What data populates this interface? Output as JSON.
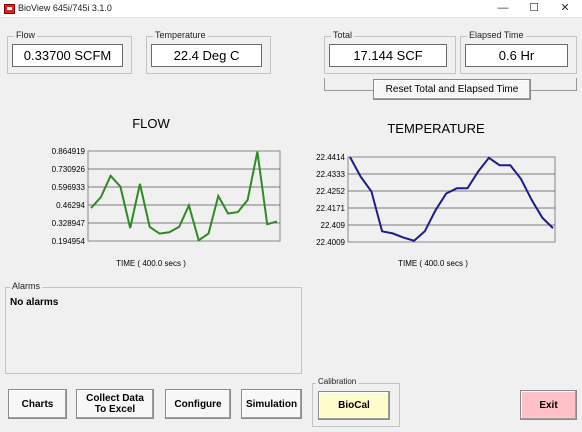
{
  "window": {
    "title": "BioView 645i/745i 3.1.0",
    "controls": {
      "minimize": "—",
      "maximize": "☐",
      "close": "✕"
    }
  },
  "readouts": {
    "flow": {
      "label": "Flow",
      "value": "0.33700 SCFM"
    },
    "temperature": {
      "label": "Temperature",
      "value": "22.4 Deg C"
    },
    "total": {
      "label": "Total",
      "value": "17.144 SCF"
    },
    "elapsed": {
      "label": "Elapsed Time",
      "value": "0.6  Hr"
    }
  },
  "reset_button": "Reset Total and Elapsed Time",
  "alarms": {
    "label": "Alarms",
    "text": "No alarms"
  },
  "buttons": {
    "charts": "Charts",
    "collect_line1": "Collect Data",
    "collect_line2": "To Excel",
    "configure": "Configure",
    "simulation": "Simulation",
    "calibration_label": "Calibration",
    "biocal": "BioCal",
    "exit": "Exit"
  },
  "colors": {
    "flow_line": "#2e8b22",
    "temperature_line": "#1c1c8c",
    "biocal_bg": "#fffccc",
    "exit_bg": "#ffc0c8"
  },
  "chart_data": [
    {
      "type": "line",
      "title": "FLOW",
      "xlabel": "TIME ( 400.0 secs )",
      "ylabel": "",
      "ylim": [
        0.194954,
        0.864919
      ],
      "yticks": [
        "0.864919",
        "0.730926",
        "0.596933",
        "0.46294",
        "0.328947",
        "0.194954"
      ],
      "grid": true,
      "series": [
        {
          "values": [
            0.44,
            0.52,
            0.68,
            0.6,
            0.29,
            0.62,
            0.3,
            0.25,
            0.26,
            0.3,
            0.46,
            0.2,
            0.25,
            0.53,
            0.4,
            0.41,
            0.5,
            0.86,
            0.32,
            0.34
          ]
        }
      ]
    },
    {
      "type": "line",
      "title": "TEMPERATURE",
      "xlabel": "TIME ( 400.0 secs )",
      "ylabel": "",
      "ylim": [
        22.4009,
        22.4414
      ],
      "yticks": [
        "22.4414",
        "22.4333",
        "22.4252",
        "22.4171",
        "22.409",
        "22.4009"
      ],
      "grid": true,
      "series": [
        {
          "values": [
            22.4414,
            22.432,
            22.425,
            22.406,
            22.405,
            22.403,
            22.4015,
            22.406,
            22.416,
            22.424,
            22.4265,
            22.4265,
            22.4345,
            22.441,
            22.4375,
            22.4375,
            22.431,
            22.421,
            22.4125,
            22.4075
          ]
        }
      ]
    }
  ]
}
